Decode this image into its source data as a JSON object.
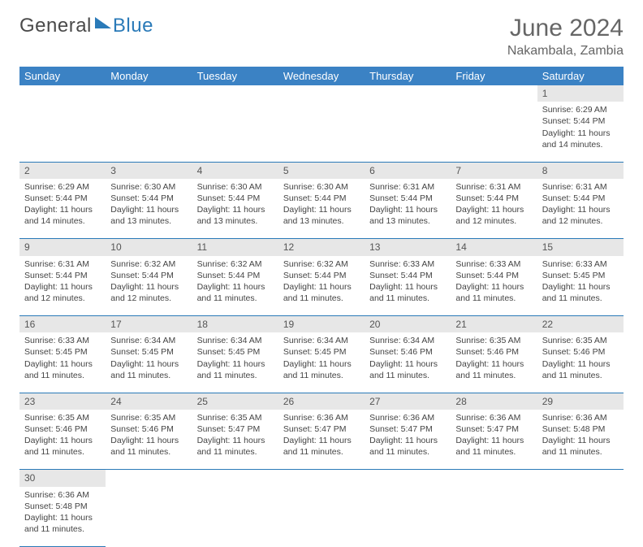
{
  "logo": {
    "text1": "General",
    "text2": "Blue"
  },
  "title": "June 2024",
  "location": "Nakambala, Zambia",
  "colors": {
    "header_bg": "#3b82c4",
    "divider": "#2a7ab8",
    "daynum_bg": "#e7e7e7",
    "text": "#444444"
  },
  "day_headers": [
    "Sunday",
    "Monday",
    "Tuesday",
    "Wednesday",
    "Thursday",
    "Friday",
    "Saturday"
  ],
  "weeks": [
    [
      null,
      null,
      null,
      null,
      null,
      null,
      {
        "n": "1",
        "sr": "6:29 AM",
        "ss": "5:44 PM",
        "dl": "11 hours and 14 minutes."
      }
    ],
    [
      {
        "n": "2",
        "sr": "6:29 AM",
        "ss": "5:44 PM",
        "dl": "11 hours and 14 minutes."
      },
      {
        "n": "3",
        "sr": "6:30 AM",
        "ss": "5:44 PM",
        "dl": "11 hours and 13 minutes."
      },
      {
        "n": "4",
        "sr": "6:30 AM",
        "ss": "5:44 PM",
        "dl": "11 hours and 13 minutes."
      },
      {
        "n": "5",
        "sr": "6:30 AM",
        "ss": "5:44 PM",
        "dl": "11 hours and 13 minutes."
      },
      {
        "n": "6",
        "sr": "6:31 AM",
        "ss": "5:44 PM",
        "dl": "11 hours and 13 minutes."
      },
      {
        "n": "7",
        "sr": "6:31 AM",
        "ss": "5:44 PM",
        "dl": "11 hours and 12 minutes."
      },
      {
        "n": "8",
        "sr": "6:31 AM",
        "ss": "5:44 PM",
        "dl": "11 hours and 12 minutes."
      }
    ],
    [
      {
        "n": "9",
        "sr": "6:31 AM",
        "ss": "5:44 PM",
        "dl": "11 hours and 12 minutes."
      },
      {
        "n": "10",
        "sr": "6:32 AM",
        "ss": "5:44 PM",
        "dl": "11 hours and 12 minutes."
      },
      {
        "n": "11",
        "sr": "6:32 AM",
        "ss": "5:44 PM",
        "dl": "11 hours and 11 minutes."
      },
      {
        "n": "12",
        "sr": "6:32 AM",
        "ss": "5:44 PM",
        "dl": "11 hours and 11 minutes."
      },
      {
        "n": "13",
        "sr": "6:33 AM",
        "ss": "5:44 PM",
        "dl": "11 hours and 11 minutes."
      },
      {
        "n": "14",
        "sr": "6:33 AM",
        "ss": "5:44 PM",
        "dl": "11 hours and 11 minutes."
      },
      {
        "n": "15",
        "sr": "6:33 AM",
        "ss": "5:45 PM",
        "dl": "11 hours and 11 minutes."
      }
    ],
    [
      {
        "n": "16",
        "sr": "6:33 AM",
        "ss": "5:45 PM",
        "dl": "11 hours and 11 minutes."
      },
      {
        "n": "17",
        "sr": "6:34 AM",
        "ss": "5:45 PM",
        "dl": "11 hours and 11 minutes."
      },
      {
        "n": "18",
        "sr": "6:34 AM",
        "ss": "5:45 PM",
        "dl": "11 hours and 11 minutes."
      },
      {
        "n": "19",
        "sr": "6:34 AM",
        "ss": "5:45 PM",
        "dl": "11 hours and 11 minutes."
      },
      {
        "n": "20",
        "sr": "6:34 AM",
        "ss": "5:46 PM",
        "dl": "11 hours and 11 minutes."
      },
      {
        "n": "21",
        "sr": "6:35 AM",
        "ss": "5:46 PM",
        "dl": "11 hours and 11 minutes."
      },
      {
        "n": "22",
        "sr": "6:35 AM",
        "ss": "5:46 PM",
        "dl": "11 hours and 11 minutes."
      }
    ],
    [
      {
        "n": "23",
        "sr": "6:35 AM",
        "ss": "5:46 PM",
        "dl": "11 hours and 11 minutes."
      },
      {
        "n": "24",
        "sr": "6:35 AM",
        "ss": "5:46 PM",
        "dl": "11 hours and 11 minutes."
      },
      {
        "n": "25",
        "sr": "6:35 AM",
        "ss": "5:47 PM",
        "dl": "11 hours and 11 minutes."
      },
      {
        "n": "26",
        "sr": "6:36 AM",
        "ss": "5:47 PM",
        "dl": "11 hours and 11 minutes."
      },
      {
        "n": "27",
        "sr": "6:36 AM",
        "ss": "5:47 PM",
        "dl": "11 hours and 11 minutes."
      },
      {
        "n": "28",
        "sr": "6:36 AM",
        "ss": "5:47 PM",
        "dl": "11 hours and 11 minutes."
      },
      {
        "n": "29",
        "sr": "6:36 AM",
        "ss": "5:48 PM",
        "dl": "11 hours and 11 minutes."
      }
    ],
    [
      {
        "n": "30",
        "sr": "6:36 AM",
        "ss": "5:48 PM",
        "dl": "11 hours and 11 minutes."
      },
      null,
      null,
      null,
      null,
      null,
      null
    ]
  ],
  "labels": {
    "sunrise": "Sunrise:",
    "sunset": "Sunset:",
    "daylight": "Daylight:"
  }
}
